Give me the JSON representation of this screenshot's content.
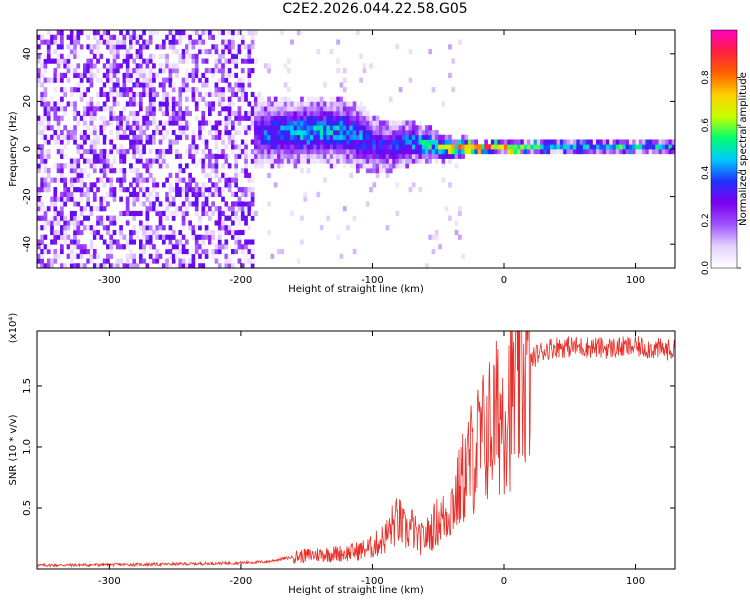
{
  "figure_title": "C2E2.2026.044.22.58.G05",
  "colors": {
    "snr_line": "#e8302a",
    "colormap": [
      "#ffffff",
      "#e6d2ff",
      "#a055ff",
      "#7a00ee",
      "#2230ff",
      "#00c8ff",
      "#00ff70",
      "#c8ff00",
      "#ffd000",
      "#ff6000",
      "#ff1f40",
      "#ff00c0"
    ]
  },
  "chart_data": [
    {
      "type": "heatmap",
      "name": "spectrogram",
      "title": "C2E2.2026.044.22.58.G05",
      "xlabel": "Height of straight line (km)",
      "ylabel": "Frequency (Hz)",
      "xlim": [
        -355,
        130
      ],
      "ylim": [
        -50,
        50
      ],
      "xticks": [
        -300,
        -200,
        -100,
        0,
        100
      ],
      "yticks": [
        -40,
        -20,
        0,
        20,
        40
      ],
      "colorbar": {
        "label": "Normalized spectral amplitude",
        "range": [
          0,
          1
        ],
        "ticks": [
          0.0,
          0.2,
          0.4,
          0.6,
          0.8
        ]
      },
      "ridge": {
        "x": [
          -195,
          -180,
          -160,
          -140,
          -120,
          -110,
          -100,
          -90,
          -80,
          -70,
          -60,
          -50,
          -40,
          -30,
          -20,
          -10,
          0,
          20,
          60,
          100,
          130
        ],
        "center_hz": [
          5,
          6,
          6,
          7,
          6,
          4,
          1,
          0,
          1,
          2,
          1,
          0,
          -1,
          0,
          -1,
          0,
          0,
          0,
          0,
          0,
          0
        ],
        "width_hz": [
          16,
          14,
          14,
          14,
          14,
          14,
          12,
          11,
          10,
          9,
          8,
          6,
          5,
          4,
          3,
          3,
          3,
          3,
          3,
          3,
          3
        ],
        "peak_amplitude": [
          0.25,
          0.4,
          0.45,
          0.45,
          0.42,
          0.4,
          0.38,
          0.35,
          0.4,
          0.45,
          0.5,
          0.6,
          0.7,
          0.8,
          0.9,
          0.92,
          0.92,
          0.55,
          0.5,
          0.5,
          0.5
        ]
      },
      "noise_region": {
        "x_range": [
          -355,
          -190
        ],
        "amplitude": [
          0.0,
          0.3
        ]
      }
    },
    {
      "type": "line",
      "name": "snr",
      "xlabel": "Height of straight line (km)",
      "ylabel": "SNR (10 * v/v)",
      "y_multiplier": "(x10⁴)",
      "xlim": [
        -355,
        130
      ],
      "ylim": [
        0,
        19500
      ],
      "xticks": [
        -300,
        -200,
        -100,
        0,
        100
      ],
      "yticks": [
        5000,
        10000,
        15000
      ],
      "ytick_labels": [
        "0.5",
        "1.0",
        "1.5"
      ],
      "series": [
        {
          "name": "SNR",
          "x": [
            -355,
            -300,
            -250,
            -200,
            -180,
            -160,
            -140,
            -120,
            -110,
            -100,
            -90,
            -85,
            -80,
            -75,
            -70,
            -65,
            -60,
            -55,
            -50,
            -45,
            -40,
            -35,
            -30,
            -25,
            -20,
            -15,
            -10,
            -5,
            0,
            5,
            10,
            15,
            20,
            25,
            30,
            35,
            40,
            60,
            80,
            100,
            120,
            130
          ],
          "y": [
            300,
            350,
            400,
            500,
            600,
            1000,
            1200,
            1300,
            1500,
            1800,
            2600,
            3500,
            4000,
            3000,
            3400,
            2400,
            2600,
            3200,
            4000,
            4200,
            5200,
            6200,
            7800,
            9000,
            10000,
            10800,
            11600,
            12400,
            13300,
            14000,
            15000,
            16200,
            17000,
            17600,
            17900,
            18100,
            18200,
            18200,
            18100,
            18200,
            18000,
            17900
          ]
        }
      ]
    }
  ]
}
